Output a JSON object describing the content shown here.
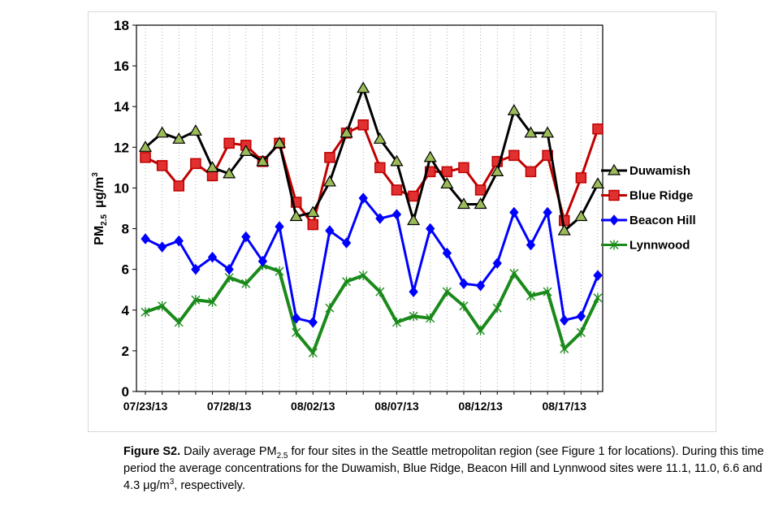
{
  "chart_data": {
    "type": "line",
    "ylabel": "PM",
    "ylabel_sub": "2.5",
    "ylabel_unit": "μg/m",
    "ylabel_unit_sup": "3",
    "ylim": [
      0,
      18
    ],
    "yticks": [
      0,
      2,
      4,
      6,
      8,
      10,
      12,
      14,
      16,
      18
    ],
    "x": [
      "07/23/13",
      "07/24/13",
      "07/25/13",
      "07/26/13",
      "07/27/13",
      "07/28/13",
      "07/29/13",
      "07/30/13",
      "07/31/13",
      "08/01/13",
      "08/02/13",
      "08/03/13",
      "08/04/13",
      "08/05/13",
      "08/06/13",
      "08/07/13",
      "08/08/13",
      "08/09/13",
      "08/10/13",
      "08/11/13",
      "08/12/13",
      "08/13/13",
      "08/14/13",
      "08/15/13",
      "08/16/13",
      "08/17/13",
      "08/18/13",
      "08/19/13"
    ],
    "xtick_labels": [
      "07/23/13",
      "07/28/13",
      "08/02/13",
      "08/07/13",
      "08/12/13",
      "08/17/13"
    ],
    "grid": "vertical dotted",
    "legend_position": "right",
    "series": [
      {
        "name": "Duwamish",
        "color": "#000000",
        "marker": "triangle",
        "values": [
          12.0,
          12.7,
          12.4,
          12.8,
          11.0,
          10.7,
          11.8,
          11.3,
          12.2,
          8.6,
          8.8,
          10.3,
          12.7,
          14.9,
          12.4,
          11.3,
          8.4,
          11.5,
          10.2,
          9.2,
          9.2,
          10.8,
          13.8,
          12.7,
          12.7,
          7.9,
          8.6,
          10.2
        ]
      },
      {
        "name": "Blue Ridge",
        "color": "#c00000",
        "marker": "square",
        "values": [
          11.5,
          11.1,
          10.1,
          11.2,
          10.6,
          12.2,
          12.1,
          11.3,
          12.2,
          9.3,
          8.2,
          11.5,
          12.7,
          13.1,
          11.0,
          9.9,
          9.6,
          10.8,
          10.8,
          11.0,
          9.9,
          11.3,
          11.6,
          10.8,
          11.6,
          8.4,
          10.5,
          12.9
        ]
      },
      {
        "name": "Beacon Hill",
        "color": "#0000ff",
        "marker": "diamond",
        "values": [
          7.5,
          7.1,
          7.4,
          6.0,
          6.6,
          6.0,
          7.6,
          6.4,
          8.1,
          3.6,
          3.4,
          7.9,
          7.3,
          9.5,
          8.5,
          8.7,
          4.9,
          8.0,
          6.8,
          5.3,
          5.2,
          6.3,
          8.8,
          7.2,
          8.8,
          3.5,
          3.7,
          5.7
        ]
      },
      {
        "name": "Lynnwood",
        "color": "#1a8a1a",
        "marker": "star",
        "values": [
          3.9,
          4.2,
          3.4,
          4.5,
          4.4,
          5.6,
          5.3,
          6.2,
          5.9,
          2.9,
          1.9,
          4.1,
          5.4,
          5.7,
          4.9,
          3.4,
          3.7,
          3.6,
          4.9,
          4.2,
          3.0,
          4.1,
          5.8,
          4.7,
          4.9,
          2.1,
          2.9,
          4.6
        ]
      }
    ]
  },
  "caption": {
    "label": "Figure S2.",
    "text_1": " Daily average PM",
    "sub": "2.5",
    "text_2": " for four sites in the Seattle metropolitan region (see Figure 1 for locations). During this time period the average concentrations for the Duwamish, Blue Ridge, Beacon Hill and Lynnwood sites were 11.1, 11.0, 6.6 and 4.3 μg/m",
    "sup": "3",
    "text_3": ", respectively."
  }
}
